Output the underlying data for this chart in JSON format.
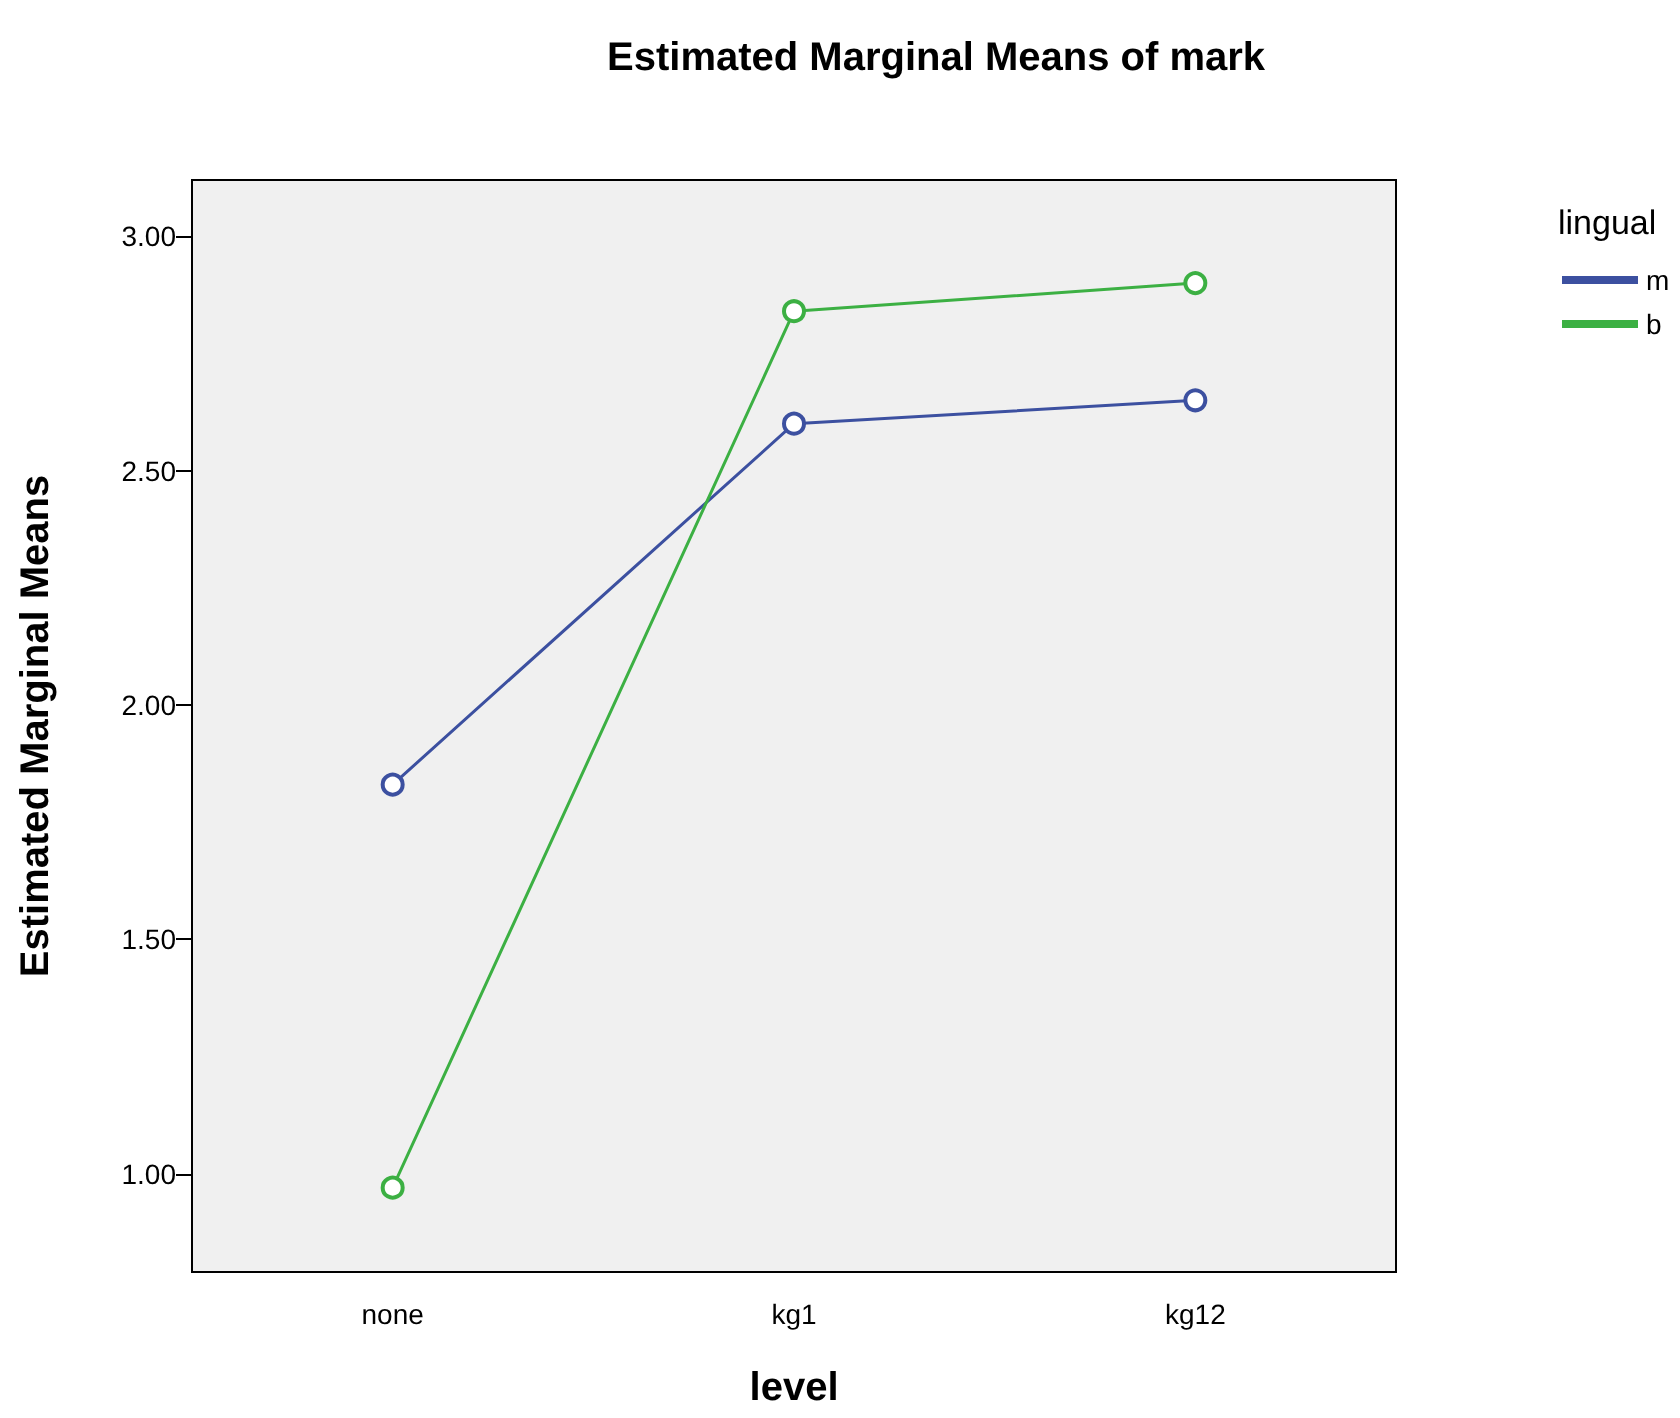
{
  "chart_data": {
    "type": "line",
    "title": "Estimated Marginal Means of mark",
    "xlabel": "level",
    "ylabel": "Estimated Marginal Means",
    "legend_title": "lingual",
    "categories": [
      "none",
      "kg1",
      "kg12"
    ],
    "series": [
      {
        "name": "m",
        "color": "#3c50a0",
        "values": [
          1.83,
          2.6,
          2.65
        ]
      },
      {
        "name": "b",
        "color": "#3cb043",
        "values": [
          0.97,
          2.84,
          2.9
        ]
      }
    ],
    "ylim": [
      0.79,
      3.12
    ],
    "yticks": [
      {
        "value": 1,
        "label": "1.00"
      },
      {
        "value": 1.5,
        "label": "1.50"
      },
      {
        "value": 2,
        "label": "2.00"
      },
      {
        "value": 2.5,
        "label": "2.50"
      },
      {
        "value": 3,
        "label": "3.00"
      }
    ],
    "grid": false,
    "legend": "top right",
    "marker": "circle",
    "line_style": "solid"
  }
}
